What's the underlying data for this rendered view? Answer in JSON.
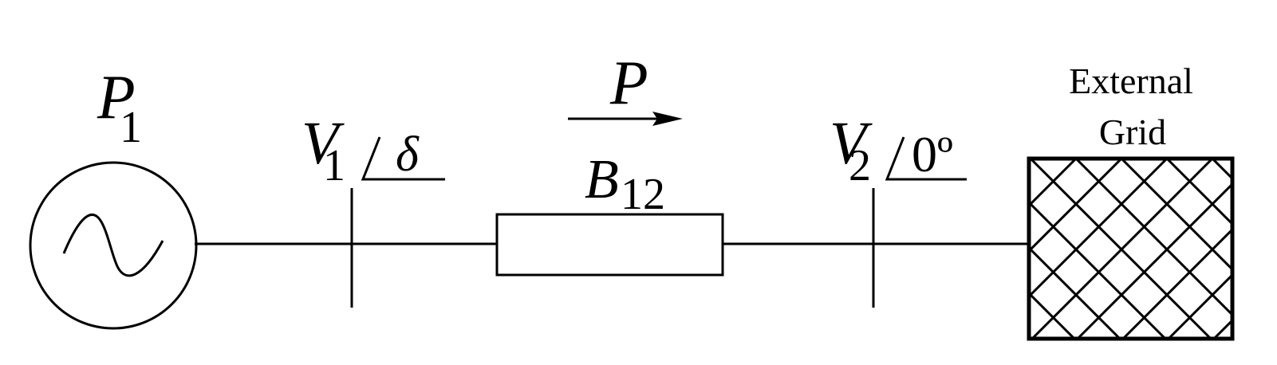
{
  "generator": {
    "symbol": "~",
    "label_main": "P",
    "label_sub": "1"
  },
  "bus1": {
    "label_main": "V",
    "label_sub": "1",
    "angle": "δ"
  },
  "line": {
    "label_main": "B",
    "label_sub": "12"
  },
  "flow": {
    "label": "P",
    "direction": "left-to-right"
  },
  "bus2": {
    "label_main": "V",
    "label_sub": "2",
    "angle": "0º"
  },
  "external_grid": {
    "label_line1": "External",
    "label_line2": "Grid"
  },
  "colors": {
    "stroke": "#000000",
    "background": "#ffffff"
  }
}
